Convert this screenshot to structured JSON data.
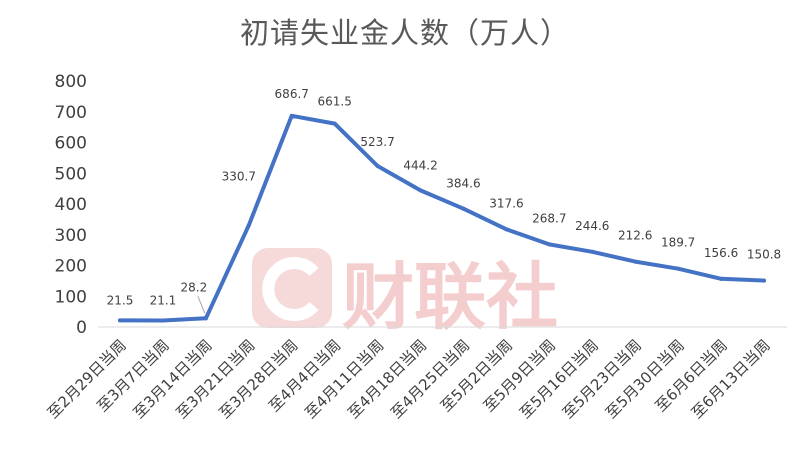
{
  "chart_data": {
    "type": "line",
    "title": "初请失业金人数（万人）",
    "categories": [
      "至2月29日当周",
      "至3月7日当周",
      "至3月14日当周",
      "至3月21日当周",
      "至3月28日当周",
      "至4月4日当周",
      "至4月11日当周",
      "至4月18日当周",
      "至4月25日当周",
      "至5月2日当周",
      "至5月9日当周",
      "至5月16日当周",
      "至5月23日当周",
      "至5月30日当周",
      "至6月6日当周",
      "至6月13日当周"
    ],
    "series": [
      {
        "values": [
          21.5,
          21.1,
          28.2,
          330.7,
          686.7,
          661.5,
          523.7,
          444.2,
          384.6,
          317.6,
          268.7,
          244.6,
          212.6,
          189.7,
          156.6,
          150.8
        ],
        "data_labels": [
          "21.5",
          "21.1",
          "28.2",
          "330.7",
          "686.7",
          "661.5",
          "523.7",
          "444.2",
          "384.6",
          "317.6",
          "268.7",
          "244.6",
          "212.6",
          "189.7",
          "156.6",
          "150.8"
        ],
        "color": "#4472C4"
      }
    ],
    "y_ticks": [
      "0",
      "100",
      "200",
      "300",
      "400",
      "500",
      "600",
      "700",
      "800"
    ],
    "ylim": [
      0,
      800
    ],
    "xlabel": "",
    "ylabel": "",
    "grid": false,
    "legend": "none"
  },
  "watermark": {
    "text": "财联社",
    "color": "#f3c9c9"
  }
}
